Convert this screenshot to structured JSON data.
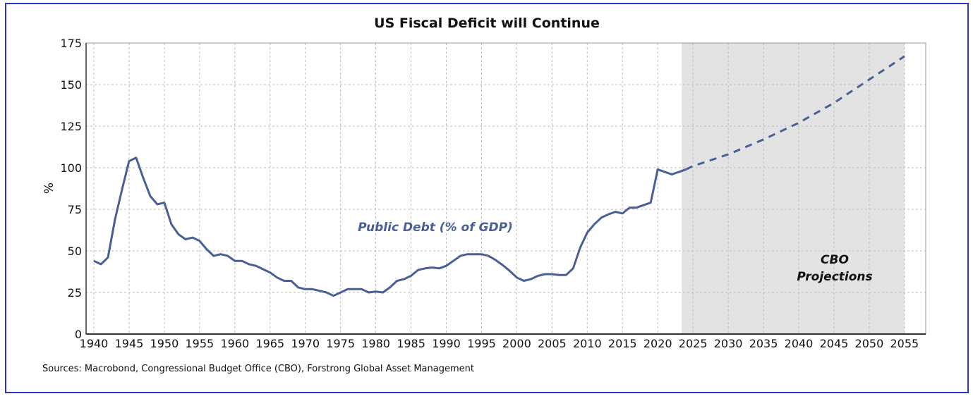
{
  "chart_data": {
    "type": "line",
    "title": "US Fiscal Deficit will Continue",
    "ylabel": "%",
    "xlabel": "",
    "xlim": [
      1939,
      2058
    ],
    "ylim": [
      0,
      175
    ],
    "x_ticks": [
      1940,
      1945,
      1950,
      1955,
      1960,
      1965,
      1970,
      1975,
      1980,
      1985,
      1990,
      1995,
      2000,
      2005,
      2010,
      2015,
      2020,
      2025,
      2030,
      2035,
      2040,
      2045,
      2050,
      2055
    ],
    "y_ticks": [
      0,
      25,
      50,
      75,
      100,
      125,
      150,
      175
    ],
    "grid": true,
    "line_color": "#4a5f95",
    "shade_color": "#e3e3e3",
    "series": [
      {
        "name": "Public Debt (% of GDP)",
        "style": "solid",
        "x": [
          1940,
          1941,
          1942,
          1943,
          1944,
          1945,
          1946,
          1947,
          1948,
          1949,
          1950,
          1951,
          1952,
          1953,
          1954,
          1955,
          1956,
          1957,
          1958,
          1959,
          1960,
          1961,
          1962,
          1963,
          1964,
          1965,
          1966,
          1967,
          1968,
          1969,
          1970,
          1971,
          1972,
          1973,
          1974,
          1975,
          1976,
          1977,
          1978,
          1979,
          1980,
          1981,
          1982,
          1983,
          1984,
          1985,
          1986,
          1987,
          1988,
          1989,
          1990,
          1991,
          1992,
          1993,
          1994,
          1995,
          1996,
          1997,
          1998,
          1999,
          2000,
          2001,
          2002,
          2003,
          2004,
          2005,
          2006,
          2007,
          2008,
          2009,
          2010,
          2011,
          2012,
          2013,
          2014,
          2015,
          2016,
          2017,
          2018,
          2019,
          2020,
          2021,
          2022,
          2023,
          2024
        ],
        "y": [
          44,
          42,
          46,
          69,
          87,
          104,
          106,
          94,
          83,
          78,
          79,
          66,
          60,
          57,
          58,
          56,
          51,
          47,
          48,
          47,
          44,
          44,
          42,
          41,
          39,
          37,
          34,
          32,
          32,
          28,
          27,
          27,
          26,
          25,
          23,
          25,
          27,
          27,
          27,
          25,
          25.5,
          25,
          28,
          32,
          33,
          35,
          38.5,
          39.5,
          40,
          39.5,
          41,
          44,
          47,
          48,
          48,
          48,
          47,
          44.5,
          41.5,
          38,
          34,
          32,
          33,
          35,
          36,
          36,
          35.5,
          35.5,
          39.5,
          52,
          61,
          66,
          70,
          72,
          73.5,
          72.5,
          76,
          76,
          77.5,
          79,
          99,
          97.5,
          96,
          97.5,
          99
        ]
      },
      {
        "name": "CBO Projections",
        "style": "dashed",
        "x": [
          2024,
          2025,
          2030,
          2035,
          2040,
          2045,
          2050,
          2055
        ],
        "y": [
          99,
          101,
          108,
          117,
          127,
          139,
          153,
          167
        ]
      }
    ],
    "shaded_region": {
      "x": [
        2024,
        2055
      ],
      "label_line1": "CBO",
      "label_line2": "Projections"
    },
    "annotation": "Public Debt (% of GDP)",
    "source": "Sources: Macrobond, Congressional Budget Office (CBO), Forstrong Global Asset Management"
  }
}
